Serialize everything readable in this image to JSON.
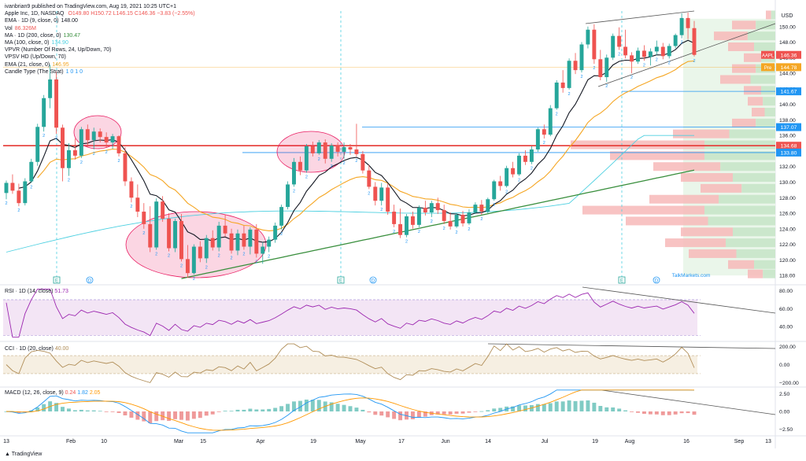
{
  "header": {
    "publisher": "ivanbrian9 published on TradingView.com, Aug 19, 2021 10:25 UTC+1",
    "symbol_line": "Apple Inc, 1D, NASDAQ",
    "ohlc": "O149.80 H150.72 L146.15 C146.36 −3.83 (−2.55%)"
  },
  "indicators": [
    {
      "label": "EMA · 1D (9, close, 0)",
      "value": "148.00",
      "color": "#131722"
    },
    {
      "label": "Vol",
      "value": "86.326M",
      "color": "#ef5350"
    },
    {
      "label": "MA · 1D (200, close, 0)",
      "value": "130.47",
      "color": "#388e3c"
    },
    {
      "label": "MA (100, close, 0)",
      "value": "134.90",
      "color": "#4dd0e1"
    },
    {
      "label": "VPVR (Number Of Rows, 24, Up/Down, 70)",
      "value": "",
      "color": "#131722"
    },
    {
      "label": "VPSV HD (Up/Down, 70)",
      "value": "",
      "color": "#131722"
    },
    {
      "label": "EMA (21, close, 0)",
      "value": "146.95",
      "color": "#f5a623"
    },
    {
      "label": "Candle Type (The Strat)",
      "value": "1 0 1 0",
      "color": "#2196f3"
    }
  ],
  "price_axis": {
    "currency": "USD",
    "ticks": [
      "150.00",
      "148.00",
      "146.00",
      "144.00",
      "142.00",
      "140.00",
      "138.00",
      "136.00",
      "134.00",
      "132.00",
      "130.00",
      "128.00",
      "126.00",
      "124.00",
      "122.00",
      "120.00",
      "118.00"
    ],
    "tags": [
      {
        "text": "AAPL",
        "value": "146.36",
        "color": "#ef5350"
      },
      {
        "text": "Pre",
        "value": "144.78",
        "color": "#f5a623"
      },
      {
        "text": "",
        "value": "141.67",
        "color": "#2196f3"
      },
      {
        "text": "",
        "value": "137.07",
        "color": "#2196f3"
      },
      {
        "text": "",
        "value": "134.68",
        "color": "#ef5350"
      },
      {
        "text": "",
        "value": "133.80",
        "color": "#2196f3"
      }
    ]
  },
  "x_axis": {
    "labels": [
      "13",
      "Feb",
      "10",
      "Mar",
      "15",
      "Apr",
      "19",
      "May",
      "17",
      "Jun",
      "14",
      "Jul",
      "19",
      "Aug",
      "16",
      "Sep",
      "13"
    ]
  },
  "rsi": {
    "label": "RSI · 1D (14, close)",
    "value": "51.73",
    "ticks": [
      "80.00",
      "60.00",
      "40.00"
    ]
  },
  "cci": {
    "label": "CCI · 1D (20, close)",
    "value": "40.00",
    "ticks": [
      "200.00",
      "0.00",
      "−200.00"
    ]
  },
  "macd": {
    "label": "MACD (12, 26, close, 9)",
    "values": [
      "0.24",
      "1.82",
      "2.05"
    ],
    "ticks": [
      "2.50",
      "0.00",
      "−2.50"
    ]
  },
  "event_marks": [
    "E",
    "D",
    "E",
    "D",
    "E",
    "D"
  ],
  "watermark": "TalkMarkets.com",
  "footer": "TradingView",
  "colors": {
    "up": "#26a69a",
    "down": "#ef5350",
    "ema9": "#131722",
    "ema21": "#f5a623",
    "ma100": "#4dd0e1",
    "ma200": "#388e3c",
    "rsi": "#9c27b0",
    "cci": "#b08d57",
    "macd": "#2196f3",
    "signal": "#ff9800"
  },
  "chart_data": {
    "type": "candlestick",
    "title": "Apple Inc, 1D, NASDAQ",
    "ylim": [
      117,
      152
    ],
    "x_range": [
      "2021-01-13",
      "2021-09-13"
    ],
    "candles": [
      {
        "o": 128.6,
        "h": 130.2,
        "l": 127.8,
        "c": 129.9
      },
      {
        "o": 129.9,
        "h": 131.0,
        "l": 128.5,
        "c": 128.9
      },
      {
        "o": 128.9,
        "h": 129.8,
        "l": 126.9,
        "c": 127.3
      },
      {
        "o": 127.3,
        "h": 130.5,
        "l": 127.0,
        "c": 130.1
      },
      {
        "o": 130.1,
        "h": 133.0,
        "l": 129.9,
        "c": 132.6
      },
      {
        "o": 132.6,
        "h": 137.5,
        "l": 132.1,
        "c": 137.1
      },
      {
        "o": 137.1,
        "h": 141.2,
        "l": 136.5,
        "c": 140.8
      },
      {
        "o": 140.8,
        "h": 145.1,
        "l": 139.5,
        "c": 143.2
      },
      {
        "o": 143.2,
        "h": 144.2,
        "l": 136.2,
        "c": 137.0
      },
      {
        "o": 137.0,
        "h": 137.4,
        "l": 130.1,
        "c": 131.8
      },
      {
        "o": 131.8,
        "h": 135.0,
        "l": 130.8,
        "c": 134.1
      },
      {
        "o": 134.1,
        "h": 135.6,
        "l": 132.9,
        "c": 133.4
      },
      {
        "o": 133.4,
        "h": 137.1,
        "l": 133.1,
        "c": 136.8
      },
      {
        "o": 136.8,
        "h": 137.4,
        "l": 134.5,
        "c": 135.4
      },
      {
        "o": 135.4,
        "h": 137.0,
        "l": 134.2,
        "c": 136.5
      },
      {
        "o": 136.5,
        "h": 136.9,
        "l": 135.1,
        "c": 135.8
      },
      {
        "o": 135.8,
        "h": 136.4,
        "l": 134.4,
        "c": 135.1
      },
      {
        "o": 135.1,
        "h": 136.2,
        "l": 134.3,
        "c": 135.9
      },
      {
        "o": 135.9,
        "h": 136.0,
        "l": 133.3,
        "c": 133.7
      },
      {
        "o": 133.7,
        "h": 134.5,
        "l": 129.5,
        "c": 130.1
      },
      {
        "o": 130.1,
        "h": 130.6,
        "l": 127.4,
        "c": 128.0
      },
      {
        "o": 128.0,
        "h": 129.7,
        "l": 125.5,
        "c": 126.2
      },
      {
        "o": 126.2,
        "h": 127.3,
        "l": 124.0,
        "c": 124.6
      },
      {
        "o": 124.6,
        "h": 126.9,
        "l": 121.0,
        "c": 121.6
      },
      {
        "o": 121.6,
        "h": 127.9,
        "l": 121.3,
        "c": 127.5
      },
      {
        "o": 127.5,
        "h": 128.2,
        "l": 124.9,
        "c": 125.3
      },
      {
        "o": 125.3,
        "h": 126.0,
        "l": 121.1,
        "c": 121.5
      },
      {
        "o": 121.5,
        "h": 125.3,
        "l": 121.0,
        "c": 125.0
      },
      {
        "o": 125.0,
        "h": 125.9,
        "l": 119.8,
        "c": 120.1
      },
      {
        "o": 120.1,
        "h": 121.9,
        "l": 117.7,
        "c": 118.3
      },
      {
        "o": 118.3,
        "h": 122.0,
        "l": 118.1,
        "c": 121.7
      },
      {
        "o": 121.7,
        "h": 122.4,
        "l": 119.7,
        "c": 120.2
      },
      {
        "o": 120.2,
        "h": 123.2,
        "l": 119.6,
        "c": 122.8
      },
      {
        "o": 122.8,
        "h": 123.8,
        "l": 121.2,
        "c": 121.6
      },
      {
        "o": 121.6,
        "h": 124.9,
        "l": 121.1,
        "c": 124.4
      },
      {
        "o": 124.4,
        "h": 125.8,
        "l": 123.0,
        "c": 123.4
      },
      {
        "o": 123.4,
        "h": 124.0,
        "l": 120.8,
        "c": 121.2
      },
      {
        "o": 121.2,
        "h": 123.9,
        "l": 120.6,
        "c": 123.4
      },
      {
        "o": 123.4,
        "h": 124.4,
        "l": 121.3,
        "c": 121.7
      },
      {
        "o": 121.7,
        "h": 124.2,
        "l": 120.7,
        "c": 123.9
      },
      {
        "o": 123.9,
        "h": 124.6,
        "l": 120.3,
        "c": 120.8
      },
      {
        "o": 120.8,
        "h": 122.3,
        "l": 119.5,
        "c": 121.7
      },
      {
        "o": 121.7,
        "h": 123.0,
        "l": 121.0,
        "c": 122.6
      },
      {
        "o": 122.6,
        "h": 124.8,
        "l": 122.2,
        "c": 124.4
      },
      {
        "o": 124.4,
        "h": 127.1,
        "l": 123.9,
        "c": 126.8
      },
      {
        "o": 126.8,
        "h": 130.1,
        "l": 126.5,
        "c": 129.7
      },
      {
        "o": 129.7,
        "h": 133.1,
        "l": 129.4,
        "c": 132.6
      },
      {
        "o": 132.6,
        "h": 133.3,
        "l": 130.9,
        "c": 131.5
      },
      {
        "o": 131.5,
        "h": 134.9,
        "l": 131.2,
        "c": 134.6
      },
      {
        "o": 134.6,
        "h": 135.2,
        "l": 133.3,
        "c": 133.7
      },
      {
        "o": 133.7,
        "h": 135.4,
        "l": 133.5,
        "c": 135.1
      },
      {
        "o": 135.1,
        "h": 135.5,
        "l": 132.4,
        "c": 133.0
      },
      {
        "o": 133.0,
        "h": 135.0,
        "l": 132.6,
        "c": 134.7
      },
      {
        "o": 134.7,
        "h": 135.1,
        "l": 133.3,
        "c": 133.9
      },
      {
        "o": 133.9,
        "h": 135.1,
        "l": 133.0,
        "c": 134.5
      },
      {
        "o": 134.5,
        "h": 134.9,
        "l": 133.5,
        "c": 134.2
      },
      {
        "o": 134.2,
        "h": 137.5,
        "l": 133.3,
        "c": 133.6
      },
      {
        "o": 133.6,
        "h": 134.0,
        "l": 131.1,
        "c": 131.5
      },
      {
        "o": 131.5,
        "h": 132.2,
        "l": 129.1,
        "c": 129.4
      },
      {
        "o": 129.4,
        "h": 130.0,
        "l": 127.0,
        "c": 127.6
      },
      {
        "o": 127.6,
        "h": 129.9,
        "l": 127.0,
        "c": 129.3
      },
      {
        "o": 129.3,
        "h": 129.8,
        "l": 125.8,
        "c": 126.2
      },
      {
        "o": 126.2,
        "h": 127.1,
        "l": 124.2,
        "c": 124.6
      },
      {
        "o": 124.6,
        "h": 126.6,
        "l": 122.8,
        "c": 123.2
      },
      {
        "o": 123.2,
        "h": 125.9,
        "l": 122.9,
        "c": 125.6
      },
      {
        "o": 125.6,
        "h": 126.2,
        "l": 124.0,
        "c": 124.5
      },
      {
        "o": 124.5,
        "h": 127.0,
        "l": 124.2,
        "c": 126.7
      },
      {
        "o": 126.7,
        "h": 127.6,
        "l": 125.7,
        "c": 126.1
      },
      {
        "o": 126.1,
        "h": 127.6,
        "l": 125.5,
        "c": 127.3
      },
      {
        "o": 127.3,
        "h": 128.0,
        "l": 125.9,
        "c": 126.4
      },
      {
        "o": 126.4,
        "h": 127.1,
        "l": 124.6,
        "c": 125.0
      },
      {
        "o": 125.0,
        "h": 126.1,
        "l": 123.9,
        "c": 124.3
      },
      {
        "o": 124.3,
        "h": 126.0,
        "l": 124.1,
        "c": 125.8
      },
      {
        "o": 125.8,
        "h": 126.3,
        "l": 124.3,
        "c": 124.7
      },
      {
        "o": 124.7,
        "h": 126.5,
        "l": 124.5,
        "c": 126.1
      },
      {
        "o": 126.1,
        "h": 127.4,
        "l": 125.9,
        "c": 127.1
      },
      {
        "o": 127.1,
        "h": 127.7,
        "l": 125.8,
        "c": 126.2
      },
      {
        "o": 126.2,
        "h": 128.0,
        "l": 126.0,
        "c": 127.8
      },
      {
        "o": 127.8,
        "h": 130.3,
        "l": 127.6,
        "c": 130.1
      },
      {
        "o": 130.1,
        "h": 130.8,
        "l": 128.9,
        "c": 129.5
      },
      {
        "o": 129.5,
        "h": 132.1,
        "l": 129.3,
        "c": 131.8
      },
      {
        "o": 131.8,
        "h": 132.6,
        "l": 130.6,
        "c": 131.0
      },
      {
        "o": 131.0,
        "h": 133.7,
        "l": 130.8,
        "c": 133.4
      },
      {
        "o": 133.4,
        "h": 134.1,
        "l": 132.2,
        "c": 132.6
      },
      {
        "o": 132.6,
        "h": 134.6,
        "l": 132.3,
        "c": 134.2
      },
      {
        "o": 134.2,
        "h": 137.0,
        "l": 133.9,
        "c": 136.8
      },
      {
        "o": 136.8,
        "h": 137.4,
        "l": 135.6,
        "c": 136.1
      },
      {
        "o": 136.1,
        "h": 139.9,
        "l": 135.9,
        "c": 139.5
      },
      {
        "o": 139.5,
        "h": 143.1,
        "l": 139.3,
        "c": 142.8
      },
      {
        "o": 142.8,
        "h": 144.4,
        "l": 141.5,
        "c": 142.1
      },
      {
        "o": 142.1,
        "h": 145.9,
        "l": 141.9,
        "c": 145.6
      },
      {
        "o": 145.6,
        "h": 146.6,
        "l": 143.9,
        "c": 144.4
      },
      {
        "o": 144.4,
        "h": 148.0,
        "l": 144.1,
        "c": 147.7
      },
      {
        "o": 147.7,
        "h": 150.0,
        "l": 147.2,
        "c": 149.6
      },
      {
        "o": 149.6,
        "h": 150.3,
        "l": 145.2,
        "c": 145.8
      },
      {
        "o": 145.8,
        "h": 147.0,
        "l": 143.1,
        "c": 143.5
      },
      {
        "o": 143.5,
        "h": 146.4,
        "l": 142.9,
        "c": 146.0
      },
      {
        "o": 146.0,
        "h": 149.1,
        "l": 145.7,
        "c": 148.8
      },
      {
        "o": 148.8,
        "h": 149.9,
        "l": 147.0,
        "c": 147.4
      },
      {
        "o": 147.4,
        "h": 149.6,
        "l": 145.9,
        "c": 146.3
      },
      {
        "o": 146.3,
        "h": 146.7,
        "l": 144.0,
        "c": 145.5
      },
      {
        "o": 145.5,
        "h": 147.3,
        "l": 145.2,
        "c": 146.9
      },
      {
        "o": 146.9,
        "h": 147.6,
        "l": 145.6,
        "c": 146.1
      },
      {
        "o": 146.1,
        "h": 147.2,
        "l": 145.0,
        "c": 146.8
      },
      {
        "o": 146.8,
        "h": 148.2,
        "l": 146.3,
        "c": 147.4
      },
      {
        "o": 147.4,
        "h": 147.9,
        "l": 145.8,
        "c": 146.2
      },
      {
        "o": 146.2,
        "h": 147.8,
        "l": 145.9,
        "c": 147.5
      },
      {
        "o": 147.5,
        "h": 149.1,
        "l": 147.2,
        "c": 148.9
      },
      {
        "o": 148.9,
        "h": 151.7,
        "l": 148.5,
        "c": 151.1
      },
      {
        "o": 151.1,
        "h": 151.8,
        "l": 148.4,
        "c": 149.8
      },
      {
        "o": 149.8,
        "h": 150.72,
        "l": 146.15,
        "c": 146.36
      }
    ],
    "horizontal_levels": [
      141.67,
      137.07,
      134.68,
      133.8
    ]
  }
}
